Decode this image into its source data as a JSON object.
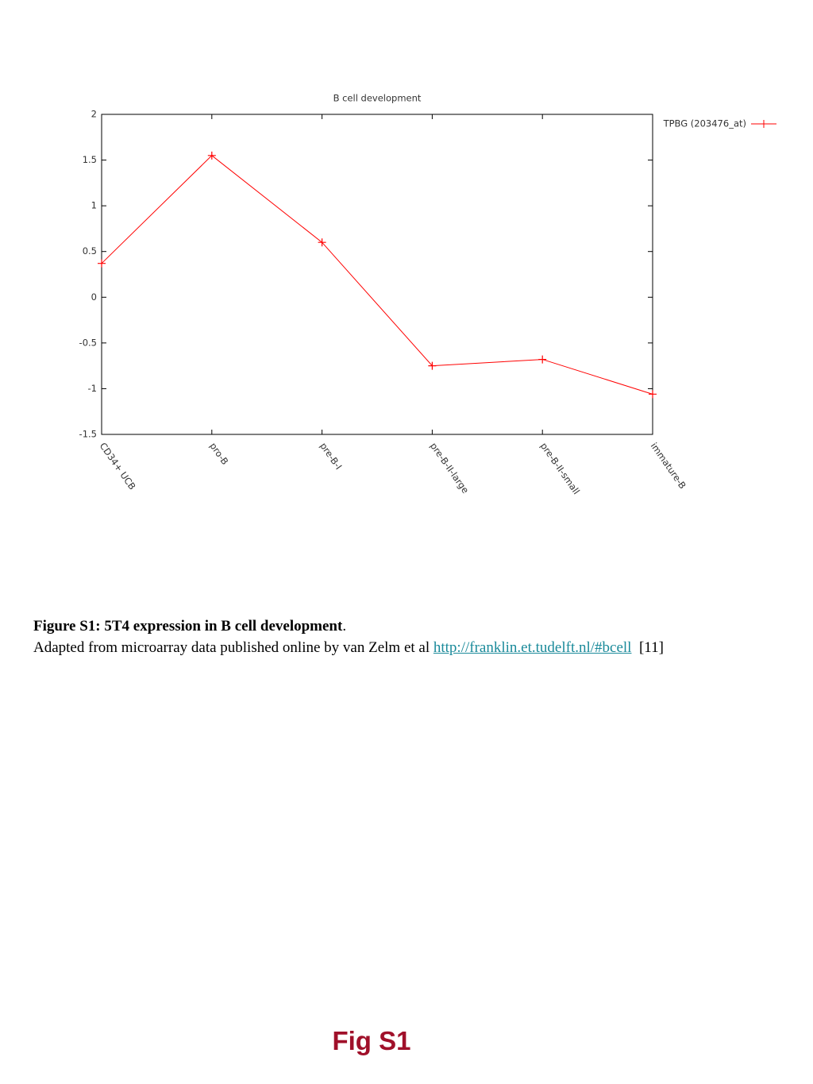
{
  "chart_data": {
    "type": "line",
    "title": "B cell development",
    "categories": [
      "CD34+ UCB",
      "pro-B",
      "pre-B-I",
      "pre-B-II-large",
      "pre-B-II-small",
      "immature-B"
    ],
    "series": [
      {
        "name": "TPBG (203476_at)",
        "color": "#ff0000",
        "values": [
          0.37,
          1.55,
          0.6,
          -0.75,
          -0.68,
          -1.06
        ]
      }
    ],
    "ylim": [
      -1.5,
      2
    ],
    "yticks": [
      -1.5,
      -1,
      -0.5,
      0,
      0.5,
      1,
      1.5,
      2
    ],
    "grid": false,
    "legend": "outside-right"
  },
  "caption": {
    "title": "Figure S1: 5T4 expression in B cell development",
    "title_end": ".",
    "text": "Adapted from microarray data published online by van Zelm et al",
    "link": "http://franklin.et.tudelft.nl/#bcell",
    "reference": "[11]"
  },
  "footer": {
    "label": "Fig S1"
  }
}
